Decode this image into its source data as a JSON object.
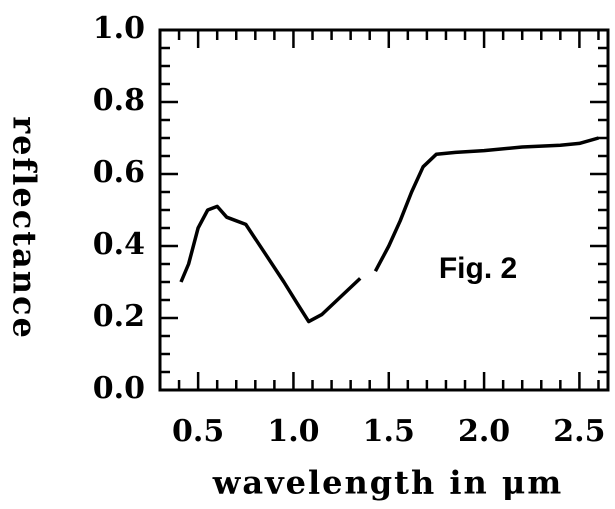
{
  "chart_data": {
    "type": "line",
    "xlabel": "wavelength in μm",
    "ylabel": "reflectance",
    "annotation": "Fig. 2",
    "x": [
      0.41,
      0.45,
      0.5,
      0.55,
      0.6,
      0.65,
      0.7,
      0.75,
      0.85,
      0.95,
      1.02,
      1.08,
      1.15,
      1.25,
      1.35,
      1.39,
      1.43,
      1.5,
      1.56,
      1.62,
      1.68,
      1.75,
      1.85,
      2.0,
      2.2,
      2.4,
      2.5,
      2.6
    ],
    "series": [
      {
        "color": "#000000",
        "values": [
          0.3,
          0.35,
          0.45,
          0.5,
          0.51,
          0.48,
          0.47,
          0.46,
          0.38,
          0.3,
          0.24,
          0.19,
          0.21,
          0.26,
          0.31,
          null,
          0.33,
          0.4,
          0.47,
          0.55,
          0.62,
          0.655,
          0.66,
          0.665,
          0.675,
          0.68,
          0.685,
          0.7
        ]
      }
    ],
    "xlim": [
      0.3,
      2.65
    ],
    "ylim": [
      0,
      1
    ],
    "xticks": [
      0.5,
      {
        "value": 1,
        "label": "1.0"
      },
      1.5,
      {
        "value": 2,
        "label": "2.0"
      },
      2.5
    ],
    "yticks": [
      {
        "value": 0,
        "label": "0.0"
      },
      0.2,
      0.4,
      0.6,
      0.8,
      {
        "value": 1,
        "label": "1.0"
      }
    ],
    "xminorticks": [
      0.3,
      0.4,
      0.6,
      0.7,
      0.8,
      0.9,
      1.1,
      1.2,
      1.3,
      1.4,
      1.6,
      1.7,
      1.8,
      1.9,
      2.1,
      2.2,
      2.3,
      2.4,
      2.6
    ],
    "yminorticks": [
      0.05,
      0.1,
      0.15,
      0.25,
      0.3,
      0.35,
      0.45,
      0.5,
      0.55,
      0.65,
      0.7,
      0.75,
      0.85,
      0.9,
      0.95
    ]
  }
}
